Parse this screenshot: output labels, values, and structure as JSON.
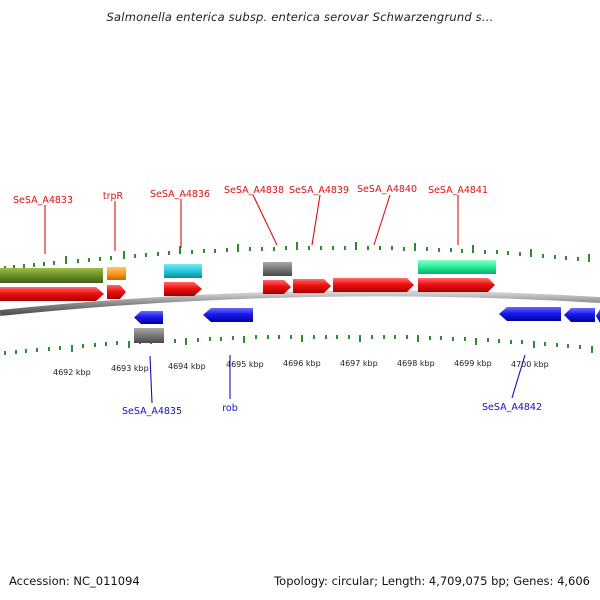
{
  "title": "Salmonella enterica subsp. enterica serovar Schwarzengrund s...",
  "footer": {
    "accession": "Accession: NC_011094",
    "summary": "Topology: circular; Length: 4,709,075 bp; Genes: 4,606"
  },
  "colors": {
    "forward_cds": "#ee1111",
    "reverse_cds": "#1a1aee",
    "forward_label": "#dd1111",
    "reverse_label": "#1111bb",
    "backbone": "#8c8c8c",
    "tick": "#2e8b2e",
    "olive": "#6b8e23",
    "orange": "#ff9a1a",
    "cyan": "#22ccdd",
    "gray": "#777777",
    "teal": "#22ee99"
  },
  "scale": {
    "labels": [
      "4692 kbp",
      "4693 kbp",
      "4694 kbp",
      "4695 kbp",
      "4696 kbp",
      "4697 kbp",
      "4698 kbp",
      "4699 kbp",
      "4700 kbp"
    ]
  },
  "top_labels": [
    "SeSA_A4833",
    "trpR",
    "SeSA_A4836",
    "SeSA_A4838",
    "SeSA_A4839",
    "SeSA_A4840",
    "SeSA_A4841"
  ],
  "bottom_labels": [
    "SeSA_A4835",
    "rob",
    "SeSA_A4842"
  ]
}
